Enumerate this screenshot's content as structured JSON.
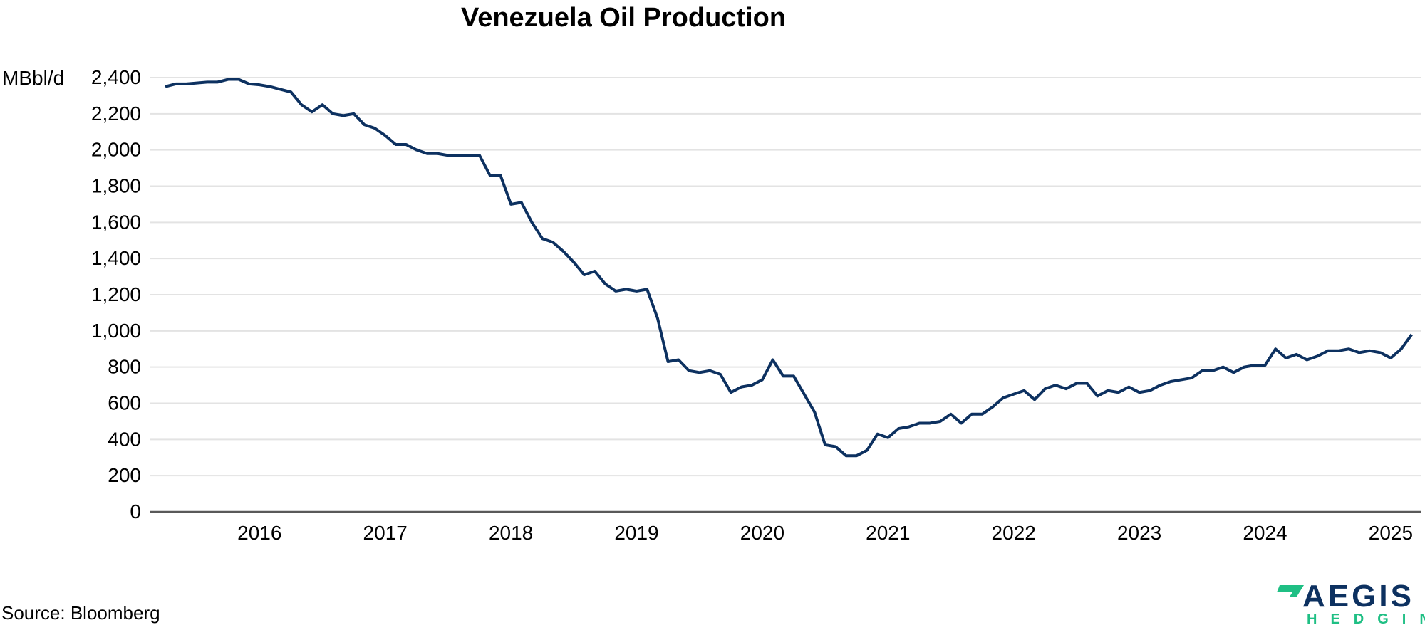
{
  "chart_data": {
    "type": "line",
    "title": "Venezuela Oil Production",
    "ylabel": "MBbl/d",
    "xlabel": "",
    "ylim": [
      0,
      2400
    ],
    "yticks": [
      0,
      200,
      400,
      600,
      800,
      1000,
      1200,
      1400,
      1600,
      1800,
      2000,
      2200,
      2400
    ],
    "ytick_labels": [
      "0",
      "200",
      "400",
      "600",
      "800",
      "1,000",
      "1,200",
      "1,400",
      "1,600",
      "1,800",
      "2,000",
      "2,200",
      "2,400"
    ],
    "xtick_labels": [
      "2016",
      "2017",
      "2018",
      "2019",
      "2020",
      "2021",
      "2022",
      "2023",
      "2024",
      "2025"
    ],
    "grid": "horizontal",
    "line_color": "#0d3160",
    "x": [
      "2015-04",
      "2015-05",
      "2015-06",
      "2015-07",
      "2015-08",
      "2015-09",
      "2015-10",
      "2015-11",
      "2015-12",
      "2016-01",
      "2016-02",
      "2016-03",
      "2016-04",
      "2016-05",
      "2016-06",
      "2016-07",
      "2016-08",
      "2016-09",
      "2016-10",
      "2016-11",
      "2016-12",
      "2017-01",
      "2017-02",
      "2017-03",
      "2017-04",
      "2017-05",
      "2017-06",
      "2017-07",
      "2017-08",
      "2017-09",
      "2017-10",
      "2017-11",
      "2017-12",
      "2018-01",
      "2018-02",
      "2018-03",
      "2018-04",
      "2018-05",
      "2018-06",
      "2018-07",
      "2018-08",
      "2018-09",
      "2018-10",
      "2018-11",
      "2018-12",
      "2019-01",
      "2019-02",
      "2019-03",
      "2019-04",
      "2019-05",
      "2019-06",
      "2019-07",
      "2019-08",
      "2019-09",
      "2019-10",
      "2019-11",
      "2019-12",
      "2020-01",
      "2020-02",
      "2020-03",
      "2020-04",
      "2020-05",
      "2020-06",
      "2020-07",
      "2020-08",
      "2020-09",
      "2020-10",
      "2020-11",
      "2020-12",
      "2021-01",
      "2021-02",
      "2021-03",
      "2021-04",
      "2021-05",
      "2021-06",
      "2021-07",
      "2021-08",
      "2021-09",
      "2021-10",
      "2021-11",
      "2021-12",
      "2022-01",
      "2022-02",
      "2022-03",
      "2022-04",
      "2022-05",
      "2022-06",
      "2022-07",
      "2022-08",
      "2022-09",
      "2022-10",
      "2022-11",
      "2022-12",
      "2023-01",
      "2023-02",
      "2023-03",
      "2023-04",
      "2023-05",
      "2023-06",
      "2023-07",
      "2023-08",
      "2023-09",
      "2023-10",
      "2023-11",
      "2023-12",
      "2024-01",
      "2024-02",
      "2024-03",
      "2024-04",
      "2024-05",
      "2024-06",
      "2024-07",
      "2024-08",
      "2024-09",
      "2024-10",
      "2024-11",
      "2024-12",
      "2025-01",
      "2025-02",
      "2025-03"
    ],
    "series": [
      {
        "values": [
          2350,
          2365,
          2365,
          2370,
          2375,
          2375,
          2390,
          2390,
          2365,
          2360,
          2350,
          2335,
          2320,
          2250,
          2210,
          2250,
          2200,
          2190,
          2200,
          2140,
          2120,
          2080,
          2030,
          2030,
          2000,
          1980,
          1980,
          1970,
          1970,
          1970,
          1970,
          1860,
          1860,
          1700,
          1710,
          1600,
          1510,
          1490,
          1440,
          1380,
          1310,
          1330,
          1260,
          1220,
          1230,
          1220,
          1230,
          1070,
          830,
          840,
          780,
          770,
          780,
          760,
          660,
          690,
          700,
          730,
          840,
          750,
          750,
          650,
          550,
          370,
          360,
          310,
          310,
          340,
          430,
          410,
          460,
          470,
          490,
          490,
          500,
          540,
          490,
          540,
          540,
          580,
          630,
          650,
          670,
          620,
          680,
          700,
          680,
          710,
          710,
          640,
          670,
          660,
          690,
          660,
          670,
          700,
          720,
          730,
          740,
          780,
          780,
          800,
          770,
          800,
          810,
          810,
          900,
          850,
          870,
          840,
          860,
          890,
          890,
          900,
          880,
          890,
          880,
          850,
          900,
          980
        ]
      }
    ]
  },
  "source": "Source: Bloomberg",
  "logo": {
    "name": "AEGIS",
    "sub": "HEDGING",
    "navy": "#0d3160",
    "green": "#1fbf84"
  }
}
